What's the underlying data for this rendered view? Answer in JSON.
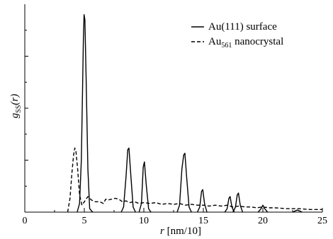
{
  "chart_data": {
    "type": "line",
    "xlabel": {
      "var": "r",
      "unit": " [nm/10]"
    },
    "ylabel": {
      "main": "g",
      "sub": "SS",
      "arg": "(r)"
    },
    "xlim": [
      0,
      25
    ],
    "ylim": [
      0,
      1
    ],
    "x_ticks": [
      0,
      5,
      10,
      15,
      20,
      25
    ],
    "x_tick_labels": [
      "0",
      "5",
      "10",
      "15",
      "20",
      "25"
    ],
    "y_ticks": [
      0.25,
      0.5,
      0.75
    ],
    "legend_position": "top-right",
    "series": [
      {
        "name": "Au(111) surface",
        "legend_main": "Au(111) surface",
        "style": "solid",
        "color": "#000000",
        "baseline": 0.0,
        "x": [
          4.4,
          4.6,
          4.75,
          4.85,
          4.92,
          4.98,
          5.05,
          5.15,
          5.3,
          5.45,
          5.7,
          8.1,
          8.3,
          8.5,
          8.65,
          8.75,
          8.9,
          9.1,
          9.3,
          9.6,
          9.8,
          9.95,
          10.05,
          10.2,
          10.4,
          10.6,
          12.8,
          13.0,
          13.2,
          13.35,
          13.45,
          13.6,
          13.8,
          14.0,
          14.5,
          14.7,
          14.85,
          14.95,
          15.1,
          15.3,
          16.8,
          17.0,
          17.15,
          17.25,
          17.4,
          17.6,
          17.5,
          17.7,
          17.85,
          17.95,
          18.1,
          18.3,
          19.6,
          19.85,
          20.0,
          20.15,
          20.4,
          22.5,
          22.75,
          22.9,
          23.05,
          23.3
        ],
        "y": [
          0,
          0.05,
          0.3,
          0.7,
          0.99,
          1.14,
          1.11,
          0.78,
          0.25,
          0.02,
          0,
          0,
          0.03,
          0.2,
          0.36,
          0.37,
          0.22,
          0.03,
          0,
          0,
          0.05,
          0.26,
          0.29,
          0.16,
          0.02,
          0,
          0,
          0.04,
          0.25,
          0.33,
          0.34,
          0.2,
          0.03,
          0,
          0,
          0.03,
          0.12,
          0.13,
          0.05,
          0,
          0,
          0.02,
          0.08,
          0.09,
          0.03,
          0,
          0,
          0.03,
          0.1,
          0.11,
          0.04,
          0,
          0,
          0.02,
          0.04,
          0.02,
          0,
          0,
          0.008,
          0.012,
          0.008,
          0
        ]
      },
      {
        "name": "Au561 nanocrystal",
        "legend_main": "Au",
        "legend_sub": "561",
        "legend_rest": " nanocrystal",
        "style": "dashed",
        "color": "#000000",
        "baseline": 0.0,
        "x": [
          3.6,
          3.8,
          3.95,
          4.1,
          4.2,
          4.3,
          4.45,
          4.6,
          4.8,
          5.0,
          5.3,
          5.6,
          5.9,
          6.3,
          6.6,
          6.8,
          7.0,
          7.3,
          7.6,
          7.9,
          8.2,
          8.5,
          8.8,
          9.2,
          9.6,
          10.0,
          10.5,
          11.0,
          11.5,
          12.0,
          12.5,
          13.0,
          13.5,
          14.0,
          14.5,
          15.0,
          15.5,
          16.0,
          16.5,
          17.0,
          17.5,
          18.0,
          18.5,
          19.0,
          19.5,
          20.0,
          20.5,
          21.0,
          22.0,
          23.0,
          24.0,
          25.0
        ],
        "y": [
          0,
          0.08,
          0.22,
          0.33,
          0.37,
          0.35,
          0.24,
          0.1,
          0.04,
          0.06,
          0.09,
          0.07,
          0.06,
          0.06,
          0.05,
          0.075,
          0.07,
          0.075,
          0.08,
          0.075,
          0.06,
          0.065,
          0.055,
          0.06,
          0.05,
          0.055,
          0.05,
          0.055,
          0.045,
          0.05,
          0.045,
          0.05,
          0.04,
          0.045,
          0.04,
          0.04,
          0.035,
          0.04,
          0.035,
          0.04,
          0.03,
          0.035,
          0.03,
          0.03,
          0.025,
          0.03,
          0.025,
          0.025,
          0.02,
          0.02,
          0.015,
          0.015
        ]
      }
    ]
  }
}
